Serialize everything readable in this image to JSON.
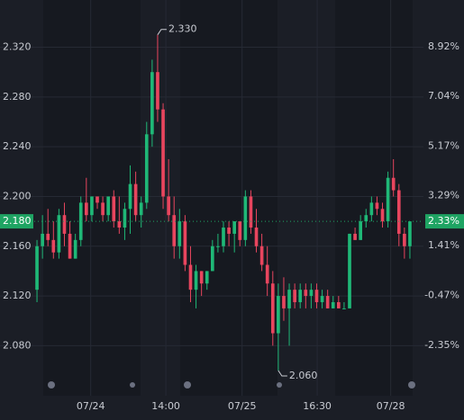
{
  "chart_data": {
    "type": "candlestick",
    "open": [
      2.125,
      2.16,
      2.17,
      2.165,
      2.155,
      2.185,
      2.17,
      2.15,
      2.165,
      2.195,
      2.185,
      2.2,
      2.195,
      2.185,
      2.2,
      2.18,
      2.175,
      2.19,
      2.21,
      2.185,
      2.195,
      2.25,
      2.3,
      2.27,
      2.2,
      2.185,
      2.16,
      2.18,
      2.145,
      2.125,
      2.14,
      2.13,
      2.14,
      2.16,
      2.16,
      2.175,
      2.17,
      2.18,
      2.165,
      2.2,
      2.175,
      2.16,
      2.145,
      2.13,
      2.09,
      2.12,
      2.11,
      2.125,
      2.115,
      2.125,
      2.12,
      2.125,
      2.115,
      2.12,
      2.11,
      2.115,
      2.11,
      2.11,
      2.17,
      2.165,
      2.18,
      2.185,
      2.195,
      2.19,
      2.18,
      2.215,
      2.205,
      2.17,
      2.16
    ],
    "high": [
      2.165,
      2.185,
      2.19,
      2.18,
      2.19,
      2.195,
      2.18,
      2.17,
      2.2,
      2.215,
      2.2,
      2.2,
      2.2,
      2.2,
      2.205,
      2.2,
      2.195,
      2.225,
      2.22,
      2.2,
      2.26,
      2.31,
      2.33,
      2.275,
      2.23,
      2.2,
      2.19,
      2.185,
      2.16,
      2.145,
      2.14,
      2.14,
      2.165,
      2.17,
      2.18,
      2.18,
      2.18,
      2.18,
      2.205,
      2.205,
      2.19,
      2.17,
      2.16,
      2.14,
      2.13,
      2.135,
      2.13,
      2.13,
      2.13,
      2.13,
      2.13,
      2.13,
      2.125,
      2.125,
      2.12,
      2.12,
      2.115,
      2.17,
      2.175,
      2.185,
      2.19,
      2.2,
      2.2,
      2.195,
      2.22,
      2.23,
      2.21,
      2.175,
      2.18
    ],
    "low": [
      2.115,
      2.15,
      2.16,
      2.15,
      2.15,
      2.16,
      2.15,
      2.15,
      2.16,
      2.18,
      2.18,
      2.19,
      2.18,
      2.18,
      2.175,
      2.17,
      2.165,
      2.17,
      2.18,
      2.175,
      2.19,
      2.24,
      2.26,
      2.19,
      2.18,
      2.15,
      2.15,
      2.14,
      2.115,
      2.11,
      2.12,
      2.125,
      2.14,
      2.155,
      2.155,
      2.16,
      2.155,
      2.16,
      2.16,
      2.17,
      2.155,
      2.14,
      2.12,
      2.08,
      2.06,
      2.1,
      2.08,
      2.11,
      2.11,
      2.11,
      2.11,
      2.11,
      2.11,
      2.11,
      2.11,
      2.11,
      2.11,
      2.11,
      2.165,
      2.165,
      2.175,
      2.18,
      2.185,
      2.175,
      2.175,
      2.2,
      2.16,
      2.15,
      2.15
    ],
    "close": [
      2.16,
      2.17,
      2.165,
      2.155,
      2.185,
      2.17,
      2.15,
      2.165,
      2.195,
      2.185,
      2.2,
      2.195,
      2.185,
      2.2,
      2.18,
      2.175,
      2.19,
      2.21,
      2.185,
      2.195,
      2.25,
      2.3,
      2.27,
      2.2,
      2.185,
      2.16,
      2.18,
      2.145,
      2.125,
      2.14,
      2.13,
      2.14,
      2.16,
      2.16,
      2.175,
      2.17,
      2.18,
      2.165,
      2.2,
      2.175,
      2.16,
      2.145,
      2.13,
      2.09,
      2.12,
      2.11,
      2.125,
      2.115,
      2.125,
      2.12,
      2.125,
      2.115,
      2.12,
      2.11,
      2.115,
      2.11,
      2.11,
      2.17,
      2.165,
      2.18,
      2.185,
      2.195,
      2.19,
      2.18,
      2.215,
      2.205,
      2.17,
      2.16,
      2.18
    ],
    "up_color": "#1fb877",
    "down_color": "#e8455e",
    "xlim": [
      0,
      69
    ],
    "xticks": [
      {
        "value": 10.3,
        "label": "07/24"
      },
      {
        "value": 24,
        "label": "14:00"
      },
      {
        "value": 37.9,
        "label": "07/25"
      },
      {
        "value": 51.6,
        "label": "16:30"
      },
      {
        "value": 65,
        "label": "07/28"
      }
    ],
    "ylim": [
      2.047,
      2.358
    ],
    "yticks": [
      {
        "value": 2.32,
        "label": "2.320"
      },
      {
        "value": 2.28,
        "label": "2.280"
      },
      {
        "value": 2.24,
        "label": "2.240"
      },
      {
        "value": 2.2,
        "label": "2.200"
      },
      {
        "value": 2.16,
        "label": "2.160"
      },
      {
        "value": 2.12,
        "label": "2.120"
      },
      {
        "value": 2.08,
        "label": "2.080"
      }
    ],
    "y2lim": [
      -3.92,
      10.68
    ],
    "y2ticks": [
      {
        "value": 8.92,
        "label": "8.92%"
      },
      {
        "value": 7.04,
        "label": "7.04%"
      },
      {
        "value": 5.17,
        "label": "5.17%"
      },
      {
        "value": 3.29,
        "label": "3.29%"
      },
      {
        "value": 1.41,
        "label": "1.41%"
      },
      {
        "value": -0.47,
        "label": "-0.47%"
      },
      {
        "value": -2.35,
        "label": "-2.35%"
      }
    ],
    "grid": true,
    "last_price": {
      "value": 2.18,
      "label": "2.180",
      "change_label": "2.33%",
      "color": "#1fa463"
    },
    "annotations": [
      {
        "text": "2.330",
        "value": 2.33,
        "index": 22
      },
      {
        "text": "2.060",
        "value": 2.06,
        "index": 44
      }
    ]
  }
}
